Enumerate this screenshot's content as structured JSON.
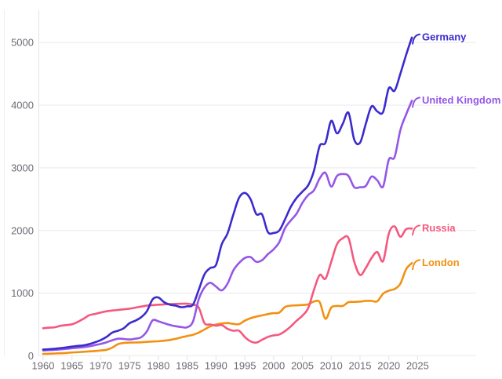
{
  "chart_data": {
    "type": "line",
    "title": "",
    "xlabel": "",
    "ylabel": "",
    "grid": "horizontal",
    "legend_position": "end-of-line-labels-right",
    "background": "#ffffff",
    "grid_color": "#e9e9ec",
    "axis_line_color": "#e3e3e6",
    "tick_text_color": "#6b6b74",
    "xlim": [
      1960,
      2025
    ],
    "ylim": [
      0,
      5250
    ],
    "x_ticks": [
      1960,
      1965,
      1970,
      1975,
      1980,
      1985,
      1990,
      1995,
      2000,
      2005,
      2010,
      2015,
      2020,
      2025
    ],
    "y_ticks": [
      0,
      1000,
      2000,
      3000,
      4000,
      5000
    ],
    "years": [
      1960,
      1961,
      1962,
      1963,
      1964,
      1965,
      1966,
      1967,
      1968,
      1969,
      1970,
      1971,
      1972,
      1973,
      1974,
      1975,
      1976,
      1977,
      1978,
      1979,
      1980,
      1981,
      1982,
      1983,
      1984,
      1985,
      1986,
      1987,
      1988,
      1989,
      1990,
      1991,
      1992,
      1993,
      1994,
      1995,
      1996,
      1997,
      1998,
      1999,
      2000,
      2001,
      2002,
      2003,
      2004,
      2005,
      2006,
      2007,
      2008,
      2009,
      2010,
      2011,
      2012,
      2013,
      2014,
      2015,
      2016,
      2017,
      2018,
      2019,
      2020,
      2021,
      2022,
      2023,
      2024
    ],
    "series": [
      {
        "name": "London",
        "color": "#f29111",
        "values": [
          30,
          33,
          36,
          40,
          45,
          52,
          58,
          64,
          70,
          77,
          85,
          95,
          130,
          185,
          205,
          210,
          212,
          215,
          222,
          228,
          232,
          240,
          252,
          270,
          294,
          315,
          335,
          370,
          420,
          470,
          500,
          515,
          522,
          510,
          505,
          560,
          600,
          625,
          645,
          665,
          680,
          690,
          780,
          800,
          805,
          810,
          820,
          865,
          855,
          590,
          770,
          795,
          795,
          855,
          860,
          865,
          875,
          875,
          870,
          990,
          1040,
          1065,
          1150,
          1380,
          1480
        ]
      },
      {
        "name": "Russia",
        "color": "#f5587e",
        "values": [
          440,
          448,
          455,
          478,
          490,
          502,
          540,
          590,
          647,
          668,
          690,
          710,
          722,
          731,
          742,
          752,
          768,
          785,
          802,
          808,
          815,
          820,
          825,
          828,
          830,
          832,
          815,
          770,
          520,
          500,
          480,
          490,
          430,
          400,
          400,
          300,
          230,
          210,
          255,
          300,
          325,
          340,
          395,
          470,
          560,
          640,
          760,
          1050,
          1290,
          1230,
          1500,
          1780,
          1875,
          1880,
          1500,
          1290,
          1400,
          1560,
          1655,
          1510,
          1950,
          2065,
          1900,
          2020,
          2030
        ]
      },
      {
        "name": "United Kingdom",
        "color": "#9457e8",
        "values": [
          85,
          90,
          95,
          102,
          110,
          120,
          128,
          138,
          152,
          170,
          190,
          215,
          248,
          272,
          268,
          260,
          273,
          295,
          390,
          565,
          550,
          520,
          492,
          472,
          458,
          455,
          545,
          900,
          1090,
          1165,
          1105,
          1045,
          1150,
          1360,
          1480,
          1560,
          1575,
          1500,
          1525,
          1620,
          1700,
          1815,
          2040,
          2160,
          2270,
          2440,
          2565,
          2640,
          2830,
          2920,
          2700,
          2870,
          2900,
          2870,
          2690,
          2690,
          2710,
          2860,
          2800,
          2700,
          3130,
          3170,
          3600,
          3850,
          4070
        ]
      },
      {
        "name": "Germany",
        "color": "#3b2bce",
        "values": [
          100,
          105,
          112,
          122,
          133,
          146,
          158,
          166,
          186,
          215,
          250,
          300,
          370,
          400,
          440,
          520,
          560,
          615,
          710,
          900,
          930,
          855,
          815,
          800,
          775,
          790,
          815,
          1050,
          1300,
          1400,
          1450,
          1780,
          1950,
          2250,
          2520,
          2600,
          2500,
          2260,
          2255,
          1975,
          1960,
          2000,
          2180,
          2380,
          2520,
          2620,
          2720,
          2950,
          3350,
          3400,
          3750,
          3550,
          3700,
          3880,
          3450,
          3400,
          3700,
          3980,
          3900,
          3890,
          4270,
          4230,
          4500,
          4800,
          5080
        ]
      }
    ]
  }
}
